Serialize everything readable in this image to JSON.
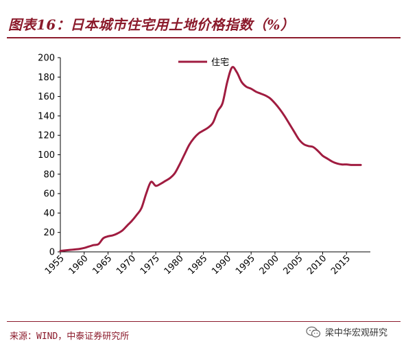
{
  "header": {
    "title": "图表16：日本城市住宅用土地价格指数（%）"
  },
  "footer": {
    "source": "来源：WIND，中泰证券研究所",
    "watermark": "梁中华宏观研究",
    "watermark_icon": "wechat-icon"
  },
  "colors": {
    "accent": "#8b1a2b",
    "line": "#a01c40"
  },
  "chart_data": {
    "type": "line",
    "title": "图表16：日本城市住宅用土地价格指数（%）",
    "xlabel": "",
    "ylabel": "",
    "xlim": [
      1955,
      2020
    ],
    "ylim": [
      0,
      200
    ],
    "yticks": [
      0,
      20,
      40,
      60,
      80,
      100,
      120,
      140,
      160,
      180,
      200
    ],
    "xticks": [
      1955,
      1960,
      1965,
      1970,
      1975,
      1980,
      1985,
      1990,
      1995,
      2000,
      2005,
      2010,
      2015
    ],
    "grid": false,
    "legend_position": "top-center",
    "series": [
      {
        "name": "住宅",
        "color": "#a01c40",
        "x": [
          1955,
          1956,
          1957,
          1958,
          1959,
          1960,
          1961,
          1962,
          1963,
          1964,
          1965,
          1966,
          1967,
          1968,
          1969,
          1970,
          1971,
          1972,
          1973,
          1974,
          1975,
          1976,
          1977,
          1978,
          1979,
          1980,
          1981,
          1982,
          1983,
          1984,
          1985,
          1986,
          1987,
          1988,
          1989,
          1990,
          1991,
          1992,
          1993,
          1994,
          1995,
          1996,
          1997,
          1998,
          1999,
          2000,
          2001,
          2002,
          2003,
          2004,
          2005,
          2006,
          2007,
          2008,
          2009,
          2010,
          2011,
          2012,
          2013,
          2014,
          2015,
          2016,
          2017,
          2018
        ],
        "values": [
          1,
          1.5,
          2,
          2.5,
          3,
          4,
          5.5,
          7,
          8,
          14,
          16,
          17,
          19,
          22,
          27,
          32,
          38,
          45,
          60,
          72,
          68,
          70,
          73,
          76,
          81,
          90,
          100,
          110,
          117,
          122,
          125,
          128,
          133,
          145,
          153,
          175,
          190,
          185,
          175,
          170,
          168,
          165,
          163,
          161,
          158,
          153,
          147,
          140,
          132,
          124,
          116,
          111,
          109,
          108,
          104,
          99,
          96,
          93,
          91,
          90,
          90,
          89.5,
          89.5,
          89.5
        ]
      }
    ]
  }
}
